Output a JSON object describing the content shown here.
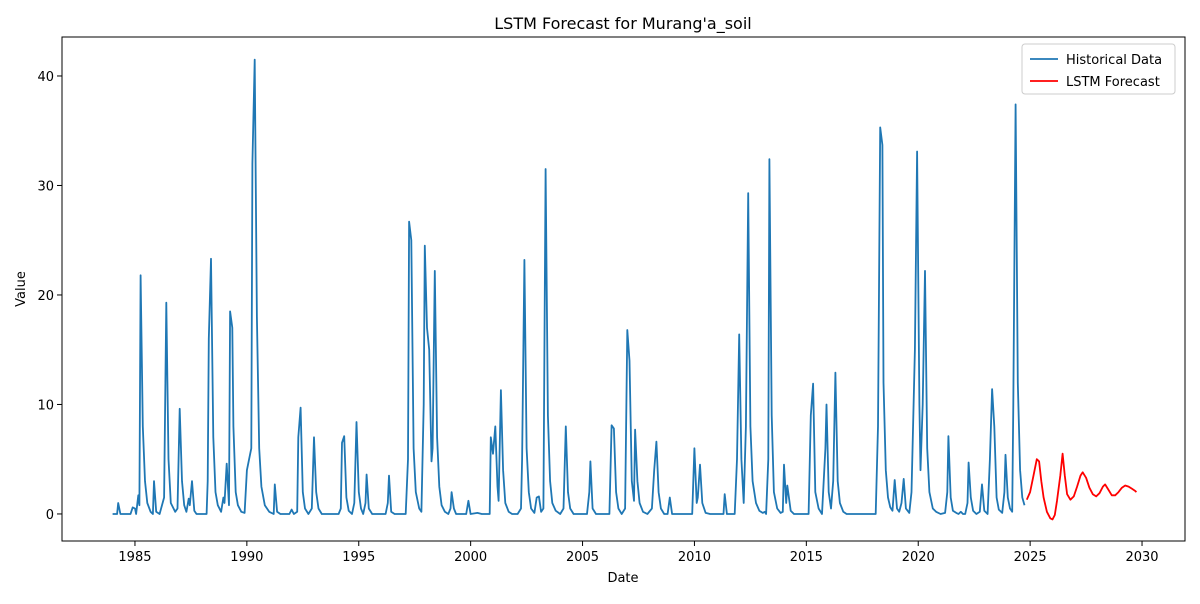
{
  "chart_data": {
    "type": "line",
    "title": "LSTM Forecast for Murang'a_soil",
    "x_label": "Date",
    "y_label": "Value",
    "xlim": [
      1981.74,
      2031.92
    ],
    "ylim": [
      -2.47,
      43.56
    ],
    "xticks": [
      1985,
      1990,
      1995,
      2000,
      2005,
      2010,
      2015,
      2020,
      2025,
      2030
    ],
    "yticks": [
      0,
      10,
      20,
      30,
      40
    ],
    "legend": "upper right",
    "series": [
      {
        "name": "Historical Data",
        "color": "#1f77b4",
        "x": [
          1984.0,
          1984.2,
          1984.25,
          1984.35,
          1984.8,
          1984.9,
          1985.0,
          1985.05,
          1985.15,
          1985.2,
          1985.25,
          1985.35,
          1985.45,
          1985.55,
          1985.7,
          1985.8,
          1985.85,
          1985.95,
          1986.1,
          1986.3,
          1986.4,
          1986.5,
          1986.6,
          1986.8,
          1986.9,
          1987.0,
          1987.1,
          1987.2,
          1987.3,
          1987.4,
          1987.45,
          1987.55,
          1987.65,
          1987.75,
          1988.2,
          1988.25,
          1988.3,
          1988.4,
          1988.5,
          1988.6,
          1988.7,
          1988.85,
          1988.95,
          1989.0,
          1989.1,
          1989.2,
          1989.25,
          1989.35,
          1989.4,
          1989.5,
          1989.6,
          1989.75,
          1989.9,
          1990.0,
          1990.1,
          1990.2,
          1990.25,
          1990.35,
          1990.45,
          1990.55,
          1990.65,
          1990.8,
          1991.0,
          1991.2,
          1991.25,
          1991.35,
          1991.5,
          1991.9,
          1992.0,
          1992.1,
          1992.25,
          1992.3,
          1992.4,
          1992.5,
          1992.6,
          1992.75,
          1992.9,
          1993.0,
          1993.1,
          1993.2,
          1993.35,
          1994.1,
          1994.2,
          1994.25,
          1994.35,
          1994.45,
          1994.55,
          1994.7,
          1994.8,
          1994.9,
          1995.0,
          1995.1,
          1995.2,
          1995.3,
          1995.35,
          1995.45,
          1995.6,
          1996.2,
          1996.3,
          1996.35,
          1996.45,
          1996.6,
          1997.1,
          1997.2,
          1997.25,
          1997.35,
          1997.45,
          1997.55,
          1997.7,
          1997.8,
          1997.9,
          1997.95,
          1998.05,
          1998.15,
          1998.25,
          1998.3,
          1998.4,
          1998.5,
          1998.6,
          1998.7,
          1998.85,
          1999.0,
          1999.1,
          1999.15,
          1999.25,
          1999.35,
          1999.8,
          1999.9,
          2000.0,
          2000.3,
          2000.5,
          2000.85,
          2000.9,
          2001.0,
          2001.1,
          2001.2,
          2001.25,
          2001.35,
          2001.45,
          2001.55,
          2001.7,
          2001.85,
          2002.1,
          2002.25,
          2002.3,
          2002.4,
          2002.5,
          2002.6,
          2002.7,
          2002.85,
          2002.95,
          2003.05,
          2003.15,
          2003.25,
          2003.35,
          2003.45,
          2003.55,
          2003.65,
          2003.8,
          2004.0,
          2004.15,
          2004.25,
          2004.35,
          2004.45,
          2004.6,
          2005.2,
          2005.3,
          2005.35,
          2005.45,
          2005.6,
          2006.2,
          2006.3,
          2006.4,
          2006.5,
          2006.6,
          2006.75,
          2006.9,
          2007.0,
          2007.1,
          2007.2,
          2007.3,
          2007.35,
          2007.45,
          2007.55,
          2007.7,
          2007.9,
          2008.1,
          2008.2,
          2008.3,
          2008.4,
          2008.5,
          2008.65,
          2008.8,
          2008.9,
          2009.0,
          2009.9,
          2010.0,
          2010.1,
          2010.15,
          2010.25,
          2010.35,
          2010.5,
          2010.7,
          2011.3,
          2011.35,
          2011.45,
          2011.8,
          2011.9,
          2012.0,
          2012.1,
          2012.2,
          2012.3,
          2012.4,
          2012.5,
          2012.6,
          2012.75,
          2012.9,
          2013.05,
          2013.15,
          2013.2,
          2013.3,
          2013.35,
          2013.45,
          2013.55,
          2013.7,
          2013.85,
          2013.95,
          2014.0,
          2014.1,
          2014.15,
          2014.3,
          2014.45,
          2015.1,
          2015.2,
          2015.3,
          2015.4,
          2015.55,
          2015.7,
          2015.85,
          2015.9,
          2016.0,
          2016.1,
          2016.2,
          2016.3,
          2016.4,
          2016.5,
          2016.65,
          2016.8,
          2018.1,
          2018.2,
          2018.3,
          2018.4,
          2018.45,
          2018.55,
          2018.65,
          2018.75,
          2018.85,
          2018.95,
          2019.05,
          2019.15,
          2019.25,
          2019.35,
          2019.45,
          2019.6,
          2019.7,
          2019.85,
          2019.95,
          2020.05,
          2020.1,
          2020.2,
          2020.3,
          2020.4,
          2020.5,
          2020.65,
          2020.8,
          2021.0,
          2021.2,
          2021.3,
          2021.35,
          2021.45,
          2021.55,
          2021.7,
          2021.8,
          2021.9,
          2022.0,
          2022.1,
          2022.2,
          2022.25,
          2022.35,
          2022.45,
          2022.6,
          2022.75,
          2022.85,
          2022.95,
          2023.1,
          2023.2,
          2023.3,
          2023.4,
          2023.5,
          2023.6,
          2023.75,
          2023.85,
          2023.9,
          2024.0,
          2024.1,
          2024.2,
          2024.25,
          2024.35,
          2024.45,
          2024.55,
          2024.65,
          2024.75
        ],
        "values": [
          0,
          0,
          1.0,
          0,
          0,
          0.6,
          0.5,
          0,
          1.7,
          0.8,
          21.8,
          8,
          3,
          1,
          0.2,
          0,
          3.0,
          0.2,
          0,
          1.5,
          19.3,
          5,
          1,
          0.2,
          0.5,
          9.6,
          3,
          0.8,
          0.2,
          1.4,
          0.8,
          3.0,
          0.3,
          0,
          0,
          3,
          16,
          23.3,
          7,
          2,
          0.8,
          0.2,
          1.5,
          1.0,
          4.6,
          0.8,
          18.5,
          17,
          8,
          2,
          0.8,
          0.2,
          0.1,
          4.0,
          5,
          6,
          32,
          41.5,
          18,
          6,
          2.5,
          0.8,
          0.2,
          0,
          2.7,
          0.2,
          0,
          0,
          0.4,
          0,
          0.2,
          7,
          9.7,
          2,
          0.5,
          0,
          0.5,
          7.0,
          2,
          0.5,
          0,
          0,
          0.5,
          6.5,
          7.1,
          1.5,
          0.3,
          0,
          1,
          8.4,
          2,
          0.5,
          0,
          1,
          3.6,
          0.5,
          0,
          0,
          1,
          3.5,
          0.2,
          0,
          0,
          5,
          26.7,
          25,
          6,
          2,
          0.5,
          0.2,
          10,
          24.5,
          17,
          15,
          4.8,
          6,
          22.2,
          7,
          2.5,
          0.8,
          0.2,
          0,
          0.5,
          2,
          0.5,
          0,
          0,
          1.2,
          0,
          0.1,
          0,
          0,
          7,
          5.5,
          8,
          2.5,
          1.2,
          11.3,
          4,
          1,
          0.2,
          0,
          0,
          0.5,
          5,
          23.2,
          6,
          2,
          0.5,
          0.1,
          1.5,
          1.6,
          0.2,
          0.5,
          31.5,
          9,
          3,
          1,
          0.3,
          0,
          0.5,
          8.0,
          2,
          0.5,
          0,
          0,
          2,
          4.8,
          0.5,
          0,
          0,
          8.1,
          7.8,
          2,
          0.5,
          0,
          0.5,
          16.8,
          14,
          3,
          1.2,
          7.7,
          3,
          1,
          0.2,
          0,
          0.5,
          4,
          6.6,
          2,
          0.5,
          0,
          0,
          1.5,
          0,
          0,
          6.0,
          1,
          1.5,
          4.5,
          1,
          0.1,
          0,
          0,
          1.8,
          0,
          0,
          5,
          16.4,
          5,
          1,
          8,
          29.3,
          8,
          3,
          1,
          0.3,
          0.1,
          0.2,
          0,
          5,
          32.4,
          9,
          2,
          0.5,
          0.1,
          0.2,
          4.5,
          1,
          2.6,
          0.3,
          0,
          0,
          9,
          11.9,
          2,
          0.5,
          0,
          6,
          10,
          2,
          0.5,
          3,
          12.9,
          3,
          1,
          0.2,
          0,
          0,
          8,
          35.3,
          33.7,
          12,
          4,
          1.5,
          0.6,
          0.3,
          3.1,
          0.5,
          0.2,
          1,
          3.2,
          0.5,
          0.1,
          2,
          15,
          33.1,
          10,
          4,
          10,
          22.2,
          6,
          2,
          0.5,
          0.2,
          0,
          0.1,
          2,
          7.1,
          1.5,
          0.3,
          0.1,
          0,
          0.2,
          0,
          0,
          1,
          4.7,
          1.5,
          0.3,
          0,
          0.2,
          2.7,
          0.3,
          0,
          5,
          11.4,
          8,
          1.5,
          0.4,
          0.1,
          2,
          5.4,
          1.5,
          0.5,
          0.2,
          10,
          37.4,
          12,
          4,
          1.5,
          0.8
        ]
      },
      {
        "name": "LSTM Forecast",
        "color": "#ff0000",
        "x": [
          2024.85,
          2025.0,
          2025.15,
          2025.3,
          2025.4,
          2025.5,
          2025.6,
          2025.75,
          2025.9,
          2026.0,
          2026.1,
          2026.2,
          2026.35,
          2026.45,
          2026.55,
          2026.65,
          2026.8,
          2026.95,
          2027.1,
          2027.25,
          2027.35,
          2027.5,
          2027.65,
          2027.8,
          2027.95,
          2028.1,
          2028.25,
          2028.35,
          2028.5,
          2028.65,
          2028.8,
          2028.95,
          2029.1,
          2029.25,
          2029.4,
          2029.55,
          2029.7,
          2029.75
        ],
        "values": [
          1.3,
          2,
          3.5,
          5.0,
          4.8,
          3,
          1.5,
          0.2,
          -0.4,
          -0.5,
          -0.1,
          1.2,
          3.5,
          5.5,
          3.5,
          1.8,
          1.3,
          1.6,
          2.5,
          3.5,
          3.8,
          3.3,
          2.4,
          1.8,
          1.6,
          1.9,
          2.5,
          2.7,
          2.2,
          1.7,
          1.7,
          2.0,
          2.4,
          2.6,
          2.5,
          2.3,
          2.1,
          2.0
        ]
      }
    ]
  }
}
